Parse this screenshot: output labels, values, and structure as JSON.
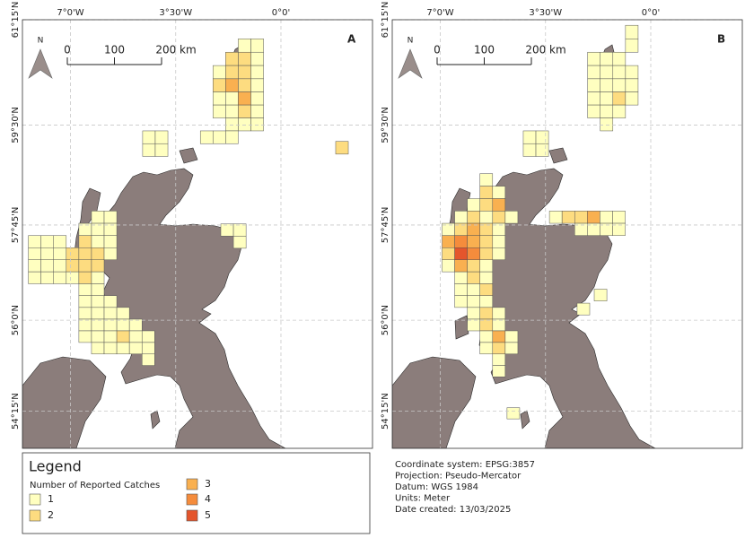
{
  "map": {
    "xticks": [
      {
        "value": -7,
        "label": "7°0'W"
      },
      {
        "value": -3.5,
        "label": "3°30'W"
      },
      {
        "value": 0,
        "label": "0°0'"
      }
    ],
    "yticks": [
      {
        "value": 61.25,
        "label": "61°15'N"
      },
      {
        "value": 59.5,
        "label": "59°30'N"
      },
      {
        "value": 57.75,
        "label": "57°45'N"
      },
      {
        "value": 56,
        "label": "56°0'N"
      },
      {
        "value": 54.25,
        "label": "54°15'N"
      }
    ],
    "scale_bar": [
      0,
      100,
      {
        "value": 200,
        "label": "200 km"
      }
    ],
    "north": "N"
  },
  "panels": [
    {
      "label": "A",
      "cells": [
        {
          "lat": 60.72,
          "lon": -1.42,
          "catches": [
            1,
            1
          ]
        },
        {
          "lat": 60.5,
          "lon": -1.84,
          "catches": [
            2,
            2,
            1
          ]
        },
        {
          "lat": 60.28,
          "lon": -2.26,
          "catches": [
            1,
            2,
            2,
            1
          ]
        },
        {
          "lat": 60.06,
          "lon": -2.26,
          "catches": [
            2,
            3,
            2,
            1
          ]
        },
        {
          "lat": 59.84,
          "lon": -2.26,
          "catches": [
            1,
            1,
            3,
            1
          ]
        },
        {
          "lat": 59.62,
          "lon": -2.26,
          "catches": [
            1,
            1,
            2,
            1
          ]
        },
        {
          "lat": 59.4,
          "lon": -2.26,
          "catches": [
            null,
            1,
            1,
            1
          ]
        },
        {
          "lat": 59.18,
          "lon": -2.68,
          "catches": [
            1,
            1,
            1
          ]
        },
        {
          "lat": 59.18,
          "lon": -4.6,
          "catches": [
            1,
            1
          ]
        },
        {
          "lat": 58.96,
          "lon": -4.6,
          "catches": [
            1,
            1
          ]
        },
        {
          "lat": 59.0,
          "lon": 1.82,
          "catches": [
            2
          ]
        },
        {
          "lat": 57.55,
          "lon": -2.0,
          "catches": [
            1,
            1
          ]
        },
        {
          "lat": 57.33,
          "lon": -1.58,
          "catches": [
            1
          ]
        },
        {
          "lat": 57.78,
          "lon": -6.3,
          "catches": [
            1,
            1
          ]
        },
        {
          "lat": 57.56,
          "lon": -6.72,
          "catches": [
            1,
            1,
            1
          ]
        },
        {
          "lat": 57.34,
          "lon": -8.4,
          "catches": [
            1,
            1,
            1,
            null,
            2,
            1,
            1
          ]
        },
        {
          "lat": 57.12,
          "lon": -8.4,
          "catches": [
            1,
            1,
            1,
            2,
            2,
            2,
            1
          ]
        },
        {
          "lat": 56.9,
          "lon": -8.4,
          "catches": [
            1,
            1,
            1,
            2,
            2,
            2
          ]
        },
        {
          "lat": 56.68,
          "lon": -8.4,
          "catches": [
            1,
            1,
            1,
            1,
            2,
            1
          ]
        },
        {
          "lat": 56.46,
          "lon": -6.72,
          "catches": [
            1,
            1
          ]
        },
        {
          "lat": 56.24,
          "lon": -6.72,
          "catches": [
            1,
            1,
            1
          ]
        },
        {
          "lat": 56.02,
          "lon": -6.72,
          "catches": [
            1,
            1,
            1,
            1
          ]
        },
        {
          "lat": 55.8,
          "lon": -6.72,
          "catches": [
            1,
            1,
            1,
            1,
            1
          ]
        },
        {
          "lat": 55.58,
          "lon": -6.72,
          "catches": [
            1,
            1,
            1,
            2,
            1,
            1
          ]
        },
        {
          "lat": 55.36,
          "lon": -6.3,
          "catches": [
            1,
            1,
            1,
            1,
            1
          ]
        },
        {
          "lat": 55.14,
          "lon": -4.62,
          "catches": [
            1
          ]
        }
      ]
    },
    {
      "label": "B",
      "cells": [
        {
          "lat": 60.94,
          "lon": -0.84,
          "catches": [
            1
          ]
        },
        {
          "lat": 60.72,
          "lon": -1.26,
          "catches": [
            null,
            1
          ]
        },
        {
          "lat": 60.5,
          "lon": -2.1,
          "catches": [
            1,
            1,
            1
          ]
        },
        {
          "lat": 60.28,
          "lon": -2.1,
          "catches": [
            1,
            1,
            1,
            1
          ]
        },
        {
          "lat": 60.06,
          "lon": -2.1,
          "catches": [
            1,
            1,
            1,
            1
          ]
        },
        {
          "lat": 59.84,
          "lon": -2.1,
          "catches": [
            1,
            1,
            2,
            1
          ]
        },
        {
          "lat": 59.62,
          "lon": -2.1,
          "catches": [
            1,
            1,
            1
          ]
        },
        {
          "lat": 59.4,
          "lon": -1.68,
          "catches": [
            1
          ]
        },
        {
          "lat": 59.18,
          "lon": -4.24,
          "catches": [
            1,
            1
          ]
        },
        {
          "lat": 58.96,
          "lon": -4.24,
          "catches": [
            1,
            1
          ]
        },
        {
          "lat": 57.78,
          "lon": -3.37,
          "catches": [
            1,
            2,
            2,
            3,
            1,
            1
          ]
        },
        {
          "lat": 57.56,
          "lon": -2.53,
          "catches": [
            1,
            1,
            1,
            1
          ]
        },
        {
          "lat": 58.44,
          "lon": -5.68,
          "catches": [
            1
          ]
        },
        {
          "lat": 58.22,
          "lon": -5.68,
          "catches": [
            2,
            1
          ]
        },
        {
          "lat": 58.0,
          "lon": -6.1,
          "catches": [
            1,
            2,
            3
          ]
        },
        {
          "lat": 57.78,
          "lon": -6.52,
          "catches": [
            1,
            2,
            1,
            2,
            1
          ]
        },
        {
          "lat": 57.56,
          "lon": -6.94,
          "catches": [
            1,
            2,
            3,
            2,
            1
          ]
        },
        {
          "lat": 57.34,
          "lon": -6.94,
          "catches": [
            3,
            4,
            3,
            2,
            1
          ]
        },
        {
          "lat": 57.12,
          "lon": -6.94,
          "catches": [
            2,
            5,
            4,
            2,
            1
          ]
        },
        {
          "lat": 56.9,
          "lon": -6.94,
          "catches": [
            1,
            3,
            2,
            1
          ]
        },
        {
          "lat": 56.68,
          "lon": -6.52,
          "catches": [
            1,
            2,
            1
          ]
        },
        {
          "lat": 56.46,
          "lon": -6.52,
          "catches": [
            1,
            1,
            2
          ]
        },
        {
          "lat": 56.24,
          "lon": -6.52,
          "catches": [
            1,
            1,
            1
          ]
        },
        {
          "lat": 56.02,
          "lon": -6.1,
          "catches": [
            1,
            2,
            1
          ]
        },
        {
          "lat": 55.8,
          "lon": -6.1,
          "catches": [
            1,
            2,
            1
          ]
        },
        {
          "lat": 55.58,
          "lon": -5.68,
          "catches": [
            1,
            3,
            1
          ]
        },
        {
          "lat": 55.36,
          "lon": -5.68,
          "catches": [
            1,
            2,
            1
          ]
        },
        {
          "lat": 55.14,
          "lon": -5.26,
          "catches": [
            1
          ]
        },
        {
          "lat": 54.92,
          "lon": -5.26,
          "catches": [
            1
          ]
        },
        {
          "lat": 56.36,
          "lon": -1.88,
          "catches": [
            1
          ]
        },
        {
          "lat": 56.1,
          "lon": -2.45,
          "catches": [
            1
          ]
        },
        {
          "lat": 54.1,
          "lon": -4.78,
          "catches": [
            1
          ]
        }
      ]
    }
  ],
  "legend": {
    "title": "Legend",
    "subtitle": "Number of Reported Catches",
    "items": [
      {
        "value": 1,
        "color": "#ffffc0"
      },
      {
        "value": 2,
        "color": "#fddc80"
      },
      {
        "value": 3,
        "color": "#f9b050"
      },
      {
        "value": 4,
        "color": "#f58c3c"
      },
      {
        "value": 5,
        "color": "#e4552c"
      }
    ]
  },
  "info": [
    "Coordinate system: EPSG:3857",
    "Projection: Pseudo-Mercator",
    "Datum: WGS 1984",
    "Units: Meter",
    "Date created: 13/03/2025"
  ]
}
